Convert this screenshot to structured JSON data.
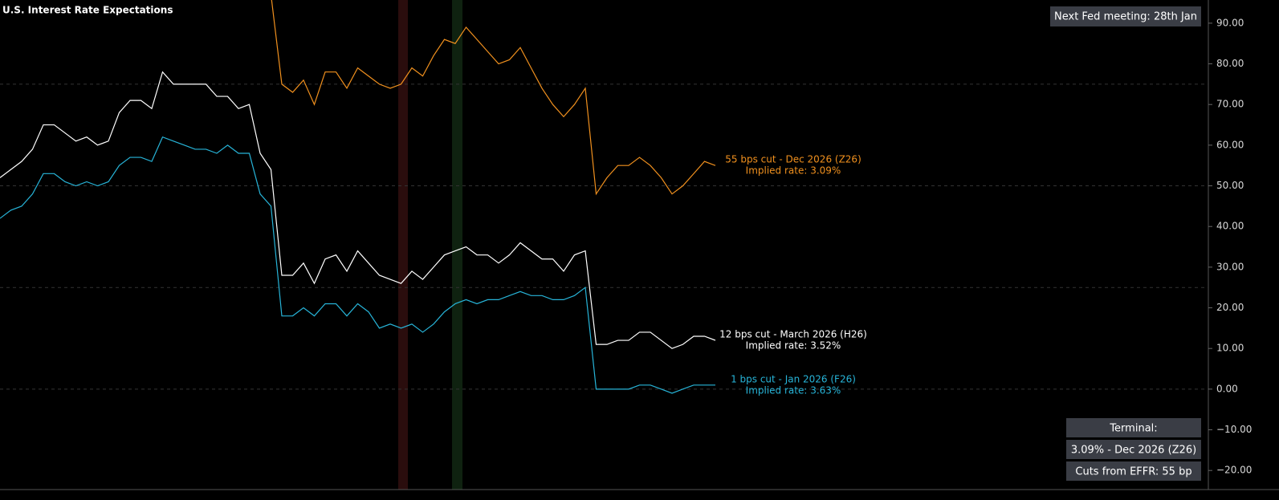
{
  "chart_data": {
    "type": "line",
    "title": "U.S. Interest Rate Expectations",
    "categories": [
      null,
      null,
      null,
      null,
      null,
      null,
      null,
      null,
      null,
      null,
      null,
      null,
      null,
      null,
      null,
      null,
      null,
      null,
      null,
      null,
      null,
      null,
      null,
      null,
      null,
      null,
      null,
      null,
      null,
      null,
      null,
      null,
      null,
      null,
      null,
      null,
      null,
      null,
      null,
      null,
      null,
      null,
      null,
      null,
      null,
      null,
      null,
      null,
      null,
      null,
      null,
      null,
      null,
      null,
      null,
      null,
      null,
      null,
      null,
      null,
      null,
      null,
      null,
      null,
      null,
      null,
      null
    ],
    "series": [
      {
        "name": "55 bps cut - Dec 2026 (Z26)",
        "label": "Implied rate: 3.09%",
        "color": "#f0901e",
        "values": [
          null,
          null,
          null,
          null,
          null,
          null,
          null,
          null,
          null,
          null,
          null,
          null,
          null,
          null,
          null,
          null,
          null,
          null,
          null,
          null,
          null,
          null,
          null,
          null,
          null,
          97,
          75,
          73,
          76,
          70,
          78,
          78,
          74,
          79,
          77,
          75,
          74,
          75,
          79,
          77,
          82,
          86,
          85,
          89,
          86,
          83,
          80,
          81,
          84,
          79,
          74,
          70,
          67,
          70,
          74,
          48,
          52,
          55,
          55,
          57,
          55,
          52,
          48,
          50,
          53,
          56,
          55
        ]
      },
      {
        "name": "12 bps cut - March 2026 (H26)",
        "label": "Implied rate: 3.52%",
        "color": "#ffffff",
        "values": [
          52,
          54,
          56,
          59,
          65,
          65,
          63,
          61,
          62,
          60,
          61,
          68,
          71,
          71,
          69,
          78,
          75,
          75,
          75,
          75,
          72,
          72,
          69,
          70,
          58,
          54,
          28,
          28,
          31,
          26,
          32,
          33,
          29,
          34,
          31,
          28,
          27,
          26,
          29,
          27,
          30,
          33,
          34,
          35,
          33,
          33,
          31,
          33,
          36,
          34,
          32,
          32,
          29,
          33,
          34,
          11,
          11,
          12,
          12,
          14,
          14,
          12,
          10,
          11,
          13,
          13,
          12
        ]
      },
      {
        "name": "1 bps cut - Jan 2026 (F26)",
        "label": "Implied rate: 3.63%",
        "color": "#27b4d8",
        "values": [
          42,
          44,
          45,
          48,
          53,
          53,
          51,
          50,
          51,
          50,
          51,
          55,
          57,
          57,
          56,
          62,
          61,
          60,
          59,
          59,
          58,
          60,
          58,
          58,
          48,
          45,
          18,
          18,
          20,
          18,
          21,
          21,
          18,
          21,
          19,
          15,
          16,
          15,
          16,
          14,
          16,
          19,
          21,
          22,
          21,
          22,
          22,
          23,
          24,
          23,
          23,
          22,
          22,
          23,
          25,
          0,
          0,
          0,
          0,
          1,
          1,
          0,
          -1,
          0,
          1,
          1,
          1
        ]
      }
    ],
    "ylim": [
      -24.7,
      95.7
    ],
    "yticks": [
      {
        "value": 90,
        "label": "90.00"
      },
      {
        "value": 80,
        "label": "80.00"
      },
      {
        "value": 70,
        "label": "70.00"
      },
      {
        "value": 60,
        "label": "60.00"
      },
      {
        "value": 50,
        "label": "50.00"
      },
      {
        "value": 40,
        "label": "40.00"
      },
      {
        "value": 30,
        "label": "30.00"
      },
      {
        "value": 20,
        "label": "20.00"
      },
      {
        "value": 10,
        "label": "10.00"
      },
      {
        "value": 0,
        "label": "0.00"
      },
      {
        "value": -10,
        "label": "−10.00"
      },
      {
        "value": -20,
        "label": "−20.00"
      }
    ],
    "gridlines": [
      75,
      50,
      25,
      0
    ],
    "annotations": {
      "next_meeting": "Next Fed meeting: 28th Jan",
      "terminal_title": "Terminal:",
      "terminal_rate": "3.09% - Dec 2026 (Z26)",
      "cuts": "Cuts from EFFR: 55 bp"
    }
  }
}
